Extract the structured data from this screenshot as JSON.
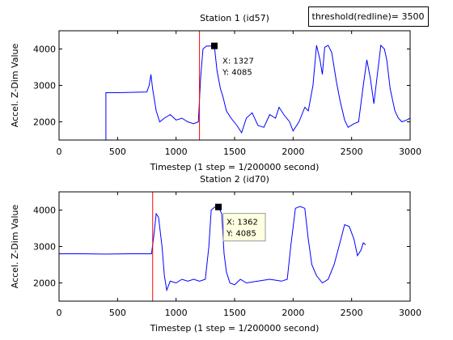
{
  "annotation": "threshold(redline)= 3500",
  "chart_data": [
    {
      "type": "line",
      "title": "Station 1 (id57)",
      "xlabel": "Timestep (1 step = 1/200000 second)",
      "ylabel": "Accel. Z-Dim Value",
      "xlim": [
        0,
        3000
      ],
      "xticks": [
        0,
        500,
        1000,
        1500,
        2000,
        2500,
        3000
      ],
      "ylim": [
        1500,
        4500
      ],
      "yticks": [
        2000,
        3000,
        4000
      ],
      "redline_x": 1200,
      "redline_color": "#ff0000",
      "datatip": {
        "x": 1327,
        "y": 4085,
        "x_label": "X: 1327",
        "y_label": "Y: 4085"
      },
      "series": [
        {
          "color": "#0000ff",
          "x": [
            400,
            400,
            500,
            750,
            770,
            785,
            800,
            830,
            860,
            900,
            950,
            1000,
            1050,
            1100,
            1150,
            1190,
            1210,
            1230,
            1260,
            1300,
            1327,
            1350,
            1380,
            1400,
            1430,
            1470,
            1520,
            1560,
            1600,
            1650,
            1700,
            1750,
            1800,
            1850,
            1880,
            1920,
            1970,
            2000,
            2050,
            2100,
            2130,
            2170,
            2200,
            2230,
            2250,
            2270,
            2300,
            2330,
            2370,
            2400,
            2440,
            2470,
            2520,
            2560,
            2600,
            2630,
            2660,
            2690,
            2720,
            2750,
            2780,
            2800,
            2830,
            2870,
            2900,
            2930,
            2970,
            3000
          ],
          "values": [
            1500,
            2800,
            2800,
            2820,
            3000,
            3300,
            2900,
            2300,
            2000,
            2100,
            2200,
            2050,
            2100,
            2000,
            1950,
            2000,
            3200,
            4000,
            4080,
            4080,
            4085,
            3400,
            2900,
            2700,
            2300,
            2100,
            1900,
            1700,
            2100,
            2250,
            1900,
            1850,
            2200,
            2100,
            2400,
            2200,
            2000,
            1750,
            2000,
            2400,
            2300,
            3000,
            4100,
            3700,
            3300,
            4050,
            4100,
            3900,
            3100,
            2600,
            2050,
            1850,
            1950,
            2000,
            3000,
            3700,
            3200,
            2500,
            3300,
            4100,
            4000,
            3700,
            2900,
            2300,
            2100,
            2000,
            2050,
            2100
          ]
        }
      ]
    },
    {
      "type": "line",
      "title": "Station 2 (id70)",
      "xlabel": "Timestep (1 step = 1/200000 second)",
      "ylabel": "Accel. Z-Dim Value",
      "xlim": [
        0,
        3000
      ],
      "xticks": [
        0,
        500,
        1000,
        1500,
        2000,
        2500,
        3000
      ],
      "ylim": [
        1500,
        4500
      ],
      "yticks": [
        2000,
        3000,
        4000
      ],
      "redline_x": 800,
      "redline_color": "#ff0000",
      "datatip": {
        "x": 1362,
        "y": 4085,
        "x_label": "X: 1362",
        "y_label": "Y: 4085"
      },
      "series": [
        {
          "color": "#0000ff",
          "x": [
            0,
            200,
            400,
            600,
            790,
            810,
            830,
            850,
            880,
            900,
            920,
            950,
            1000,
            1050,
            1100,
            1150,
            1200,
            1250,
            1280,
            1300,
            1330,
            1362,
            1390,
            1410,
            1430,
            1460,
            1500,
            1550,
            1600,
            1700,
            1800,
            1900,
            1950,
            1980,
            2020,
            2060,
            2100,
            2130,
            2160,
            2200,
            2250,
            2300,
            2350,
            2400,
            2440,
            2480,
            2520,
            2550,
            2580,
            2600,
            2620
          ],
          "values": [
            2800,
            2800,
            2790,
            2800,
            2800,
            3300,
            3900,
            3800,
            3000,
            2200,
            1800,
            2050,
            2000,
            2100,
            2050,
            2100,
            2050,
            2100,
            3000,
            4000,
            4080,
            4085,
            3900,
            2800,
            2300,
            2000,
            1950,
            2100,
            2000,
            2050,
            2100,
            2050,
            2100,
            3000,
            4050,
            4100,
            4050,
            3200,
            2500,
            2200,
            2000,
            2100,
            2500,
            3100,
            3600,
            3550,
            3200,
            2750,
            2900,
            3100,
            3050
          ]
        }
      ]
    }
  ]
}
